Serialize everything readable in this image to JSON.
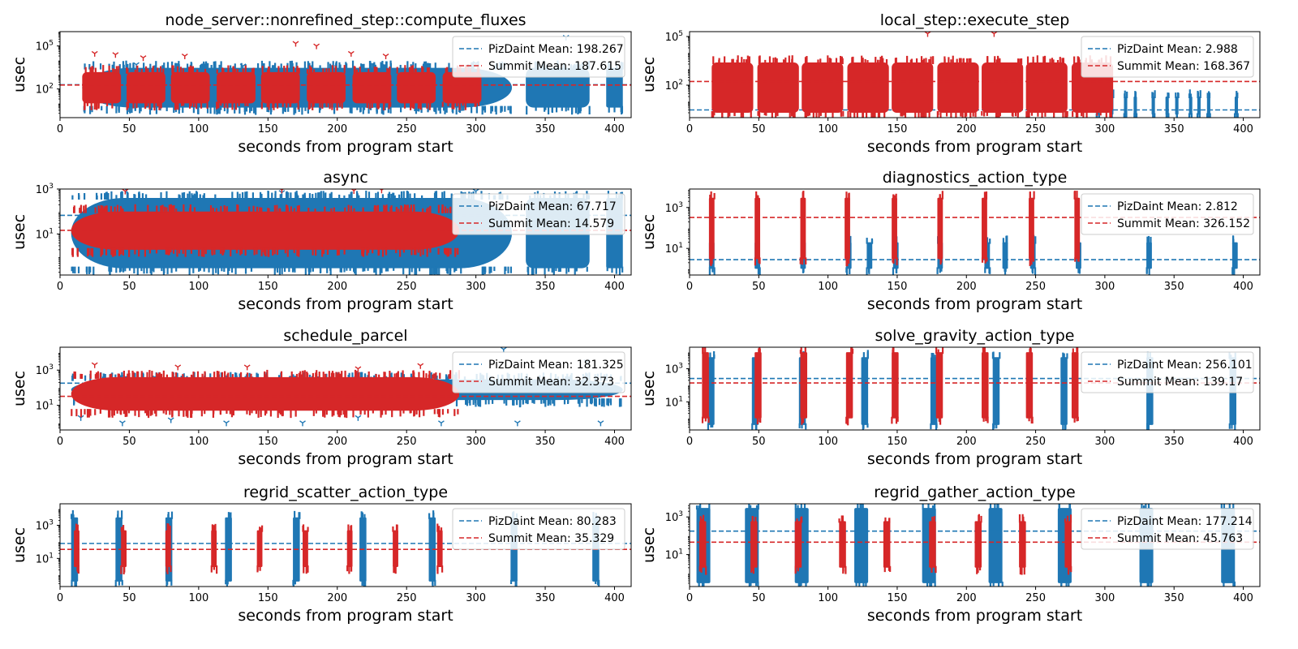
{
  "figure": {
    "colors": {
      "pizdaint": "#1f77b4",
      "summit": "#d62728",
      "frame": "#000000"
    },
    "legend_placement": "upper right"
  },
  "chart_data": [
    {
      "type": "scatter",
      "title": "node_server::nonrefined_step::compute_fluxes",
      "xlabel": "seconds from program start",
      "ylabel": "usec",
      "xlim": [
        0,
        412
      ],
      "ylim": [
        1,
        1000000
      ],
      "yscale": "log",
      "xticks": [
        0,
        50,
        100,
        150,
        200,
        250,
        300,
        350,
        400
      ],
      "yticks": [
        {
          "exp": 2,
          "label": "10",
          "sup": "2"
        },
        {
          "exp": 5,
          "label": "10",
          "sup": "5"
        }
      ],
      "series": [
        {
          "name": "PizDaint Mean: 198.267",
          "mean": 198.267,
          "color": "#1f77b4",
          "pattern": "continuous",
          "range": [
            16,
            406
          ],
          "bands": [
            [
              5,
              3000
            ]
          ],
          "gaps": [
            [
              326,
              336
            ],
            [
              382,
              394
            ]
          ],
          "outliers": [
            [
              55,
              5000
            ],
            [
              132,
              4000
            ],
            [
              300,
              6000
            ],
            [
              365,
              400000
            ]
          ]
        },
        {
          "name": "Summit Mean: 187.615",
          "mean": 187.615,
          "color": "#d62728",
          "pattern": "bursts",
          "starts": [
            16,
            48,
            80,
            113,
            145,
            178,
            211,
            243,
            276
          ],
          "width": 28,
          "bands": [
            [
              10,
              1500
            ]
          ],
          "outliers": [
            [
              25,
              30000
            ],
            [
              40,
              25000
            ],
            [
              60,
              15000
            ],
            [
              90,
              20000
            ],
            [
              170,
              150000
            ],
            [
              185,
              100000
            ],
            [
              210,
              30000
            ],
            [
              235,
              20000
            ]
          ]
        }
      ]
    },
    {
      "type": "scatter",
      "title": "local_step::execute_step",
      "xlabel": "seconds from program start",
      "ylabel": "usec",
      "xlim": [
        0,
        412
      ],
      "ylim": [
        1,
        200000
      ],
      "yscale": "log",
      "xticks": [
        0,
        50,
        100,
        150,
        200,
        250,
        300,
        350,
        400
      ],
      "yticks": [
        {
          "exp": 2,
          "label": "10",
          "sup": "2"
        },
        {
          "exp": 5,
          "label": "10",
          "sup": "5"
        }
      ],
      "series": [
        {
          "name": "PizDaint Mean: 2.988",
          "mean": 2.988,
          "color": "#1f77b4",
          "pattern": "sparse",
          "positions": [
            295,
            305,
            315,
            322,
            335,
            345,
            352,
            362,
            368,
            375,
            395
          ],
          "bands": [
            [
              1.5,
              20
            ]
          ]
        },
        {
          "name": "Summit Mean: 168.367",
          "mean": 168.367,
          "color": "#d62728",
          "pattern": "bursts",
          "starts": [
            16,
            49,
            81,
            114,
            146,
            179,
            211,
            243,
            276
          ],
          "width": 30,
          "bands": [
            [
              2,
              2500
            ]
          ],
          "outliers": [
            [
              172,
              150000
            ],
            [
              220,
              150000
            ]
          ]
        }
      ]
    },
    {
      "type": "scatter",
      "title": "async",
      "xlabel": "seconds from program start",
      "ylabel": "usec",
      "xlim": [
        0,
        412
      ],
      "ylim": [
        0.15,
        1000
      ],
      "yscale": "log",
      "xticks": [
        0,
        50,
        100,
        150,
        200,
        250,
        300,
        350,
        400
      ],
      "yticks": [
        {
          "exp": 1,
          "label": "10",
          "sup": "1"
        },
        {
          "exp": 3,
          "label": "10",
          "sup": "3"
        }
      ],
      "series": [
        {
          "name": "PizDaint Mean: 67.717",
          "mean": 67.717,
          "color": "#1f77b4",
          "pattern": "continuous",
          "range": [
            8,
            406
          ],
          "bands": [
            [
              0.3,
              400
            ]
          ],
          "gaps": [
            [
              326,
              336
            ],
            [
              382,
              394
            ]
          ],
          "outliers": [
            [
              48,
              900
            ],
            [
              160,
              700
            ],
            [
              300,
              800
            ]
          ]
        },
        {
          "name": "Summit Mean: 14.579",
          "mean": 14.579,
          "color": "#d62728",
          "pattern": "continuous",
          "range": [
            8,
            288
          ],
          "bands": [
            [
              2,
              100
            ]
          ],
          "outliers": [
            [
              47,
              800
            ],
            [
              160,
              900
            ],
            [
              212,
              850
            ],
            [
              232,
              900
            ]
          ]
        }
      ]
    },
    {
      "type": "scatter",
      "title": "diagnostics_action_type",
      "xlabel": "seconds from program start",
      "ylabel": "usec",
      "xlim": [
        0,
        412
      ],
      "ylim": [
        0.5,
        8000
      ],
      "yscale": "log",
      "xticks": [
        0,
        50,
        100,
        150,
        200,
        250,
        300,
        350,
        400
      ],
      "yticks": [
        {
          "exp": 1,
          "label": "10",
          "sup": "1"
        },
        {
          "exp": 3,
          "label": "10",
          "sup": "3"
        }
      ],
      "series": [
        {
          "name": "PizDaint Mean: 2.812",
          "mean": 2.812,
          "color": "#1f77b4",
          "pattern": "bursts",
          "starts": [
            14,
            47,
            80,
            113,
            128,
            147,
            179,
            213,
            226,
            246,
            279,
            330,
            392
          ],
          "width": 4,
          "bands": [
            [
              1,
              20
            ]
          ]
        },
        {
          "name": "Summit Mean: 326.152",
          "mean": 326.152,
          "color": "#d62728",
          "pattern": "bursts",
          "starts": [
            14,
            47,
            80,
            112,
            146,
            179,
            211,
            245,
            278
          ],
          "width": 4,
          "bands": [
            [
              3,
              3000
            ]
          ]
        }
      ]
    },
    {
      "type": "scatter",
      "title": "schedule_parcel",
      "xlabel": "seconds from program start",
      "ylabel": "usec",
      "xlim": [
        0,
        412
      ],
      "ylim": [
        0.4,
        20000
      ],
      "yscale": "log",
      "xticks": [
        0,
        50,
        100,
        150,
        200,
        250,
        300,
        350,
        400
      ],
      "yticks": [
        {
          "exp": 1,
          "label": "10",
          "sup": "1"
        },
        {
          "exp": 3,
          "label": "10",
          "sup": "3"
        }
      ],
      "series": [
        {
          "name": "PizDaint Mean: 181.325",
          "mean": 181.325,
          "color": "#1f77b4",
          "pattern": "continuous",
          "range": [
            8,
            406
          ],
          "bands": [
            [
              20,
              300
            ]
          ],
          "outliers": [
            [
              15,
              2
            ],
            [
              45,
              1
            ],
            [
              80,
              1.5
            ],
            [
              120,
              1
            ],
            [
              175,
              1
            ],
            [
              215,
              2
            ],
            [
              275,
              1
            ],
            [
              330,
              1
            ],
            [
              390,
              1
            ],
            [
              320,
              15000
            ],
            [
              380,
              3000
            ]
          ]
        },
        {
          "name": "Summit Mean: 32.373",
          "mean": 32.373,
          "color": "#d62728",
          "pattern": "continuous",
          "range": [
            8,
            288
          ],
          "bands": [
            [
              5,
              400
            ]
          ],
          "outliers": [
            [
              25,
              2000
            ],
            [
              85,
              1500
            ],
            [
              135,
              1500
            ],
            [
              215,
              1200
            ],
            [
              260,
              1800
            ]
          ]
        }
      ]
    },
    {
      "type": "scatter",
      "title": "solve_gravity_action_type",
      "xlabel": "seconds from program start",
      "ylabel": "usec",
      "xlim": [
        0,
        412
      ],
      "ylim": [
        0.2,
        20000
      ],
      "yscale": "log",
      "xticks": [
        0,
        50,
        100,
        150,
        200,
        250,
        300,
        350,
        400
      ],
      "yticks": [
        {
          "exp": 1,
          "label": "10",
          "sup": "1"
        },
        {
          "exp": 3,
          "label": "10",
          "sup": "3"
        }
      ],
      "series": [
        {
          "name": "PizDaint Mean: 256.101",
          "mean": 256.101,
          "color": "#1f77b4",
          "pattern": "bursts",
          "starts": [
            13,
            45,
            79,
            124,
            174,
            219,
            268,
            330,
            390
          ],
          "width": 5,
          "bands": [
            [
              0.4,
              5000
            ]
          ]
        },
        {
          "name": "Summit Mean: 139.17",
          "mean": 139.17,
          "color": "#d62728",
          "pattern": "bursts",
          "starts": [
            9,
            47,
            80,
            113,
            146,
            178,
            211,
            243,
            276
          ],
          "width": 5,
          "bands": [
            [
              1,
              10000
            ]
          ]
        }
      ]
    },
    {
      "type": "scatter",
      "title": "regrid_scatter_action_type",
      "xlabel": "seconds from program start",
      "ylabel": "usec",
      "xlim": [
        0,
        412
      ],
      "ylim": [
        0.2,
        20000
      ],
      "yscale": "log",
      "xticks": [
        0,
        50,
        100,
        150,
        200,
        250,
        300,
        350,
        400
      ],
      "yticks": [
        {
          "exp": 1,
          "label": "10",
          "sup": "1"
        },
        {
          "exp": 3,
          "label": "10",
          "sup": "3"
        }
      ],
      "series": [
        {
          "name": "PizDaint Mean: 80.283",
          "mean": 80.283,
          "color": "#1f77b4",
          "pattern": "bursts",
          "starts": [
            8,
            40,
            76,
            119,
            168,
            216,
            266,
            325,
            384
          ],
          "width": 5,
          "bands": [
            [
              0.4,
              3000
            ]
          ]
        },
        {
          "name": "Summit Mean: 35.329",
          "mean": 35.329,
          "color": "#d62728",
          "pattern": "bursts",
          "starts": [
            10,
            44,
            76,
            109,
            142,
            175,
            207,
            240,
            272
          ],
          "width": 4,
          "bands": [
            [
              3,
              500
            ]
          ]
        }
      ]
    },
    {
      "type": "scatter",
      "title": "regrid_gather_action_type",
      "xlabel": "seconds from program start",
      "ylabel": "usec",
      "xlim": [
        0,
        412
      ],
      "ylim": [
        0.2,
        5000
      ],
      "yscale": "log",
      "xticks": [
        0,
        50,
        100,
        150,
        200,
        250,
        300,
        350,
        400
      ],
      "yticks": [
        {
          "exp": 1,
          "label": "10",
          "sup": "1"
        },
        {
          "exp": 3,
          "label": "10",
          "sup": "3"
        }
      ],
      "series": [
        {
          "name": "PizDaint Mean: 177.214",
          "mean": 177.214,
          "color": "#1f77b4",
          "pattern": "bursts",
          "starts": [
            5,
            40,
            76,
            119,
            168,
            216,
            266,
            325,
            384
          ],
          "width": 10,
          "bands": [
            [
              0.3,
              3000
            ]
          ]
        },
        {
          "name": "Summit Mean: 45.763",
          "mean": 45.763,
          "color": "#d62728",
          "pattern": "bursts",
          "starts": [
            7,
            44,
            76,
            108,
            140,
            173,
            206,
            238,
            271
          ],
          "width": 5,
          "bands": [
            [
              2,
              600
            ]
          ]
        }
      ]
    }
  ]
}
